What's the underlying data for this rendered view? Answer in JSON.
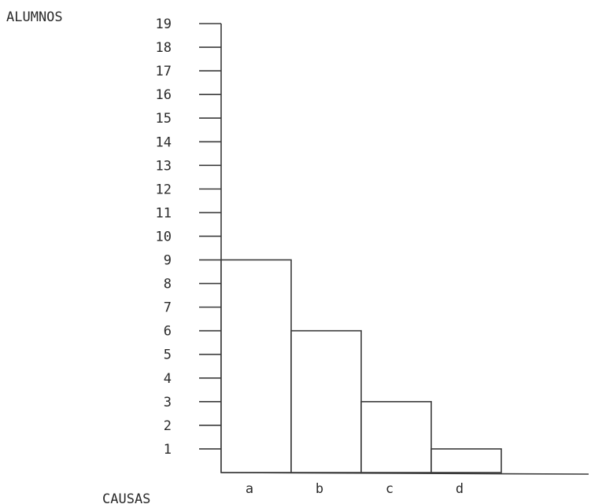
{
  "chart_data": {
    "type": "bar",
    "ylabel": "ALUMNOS",
    "xlabel": "CAUSAS",
    "categories": [
      "a",
      "b",
      "c",
      "d"
    ],
    "values": [
      9,
      6,
      3,
      1
    ],
    "yticks": [
      1,
      2,
      3,
      4,
      5,
      6,
      7,
      8,
      9,
      10,
      11,
      12,
      13,
      14,
      15,
      16,
      17,
      18,
      19
    ],
    "ylim": [
      0,
      19
    ],
    "grid": false
  }
}
